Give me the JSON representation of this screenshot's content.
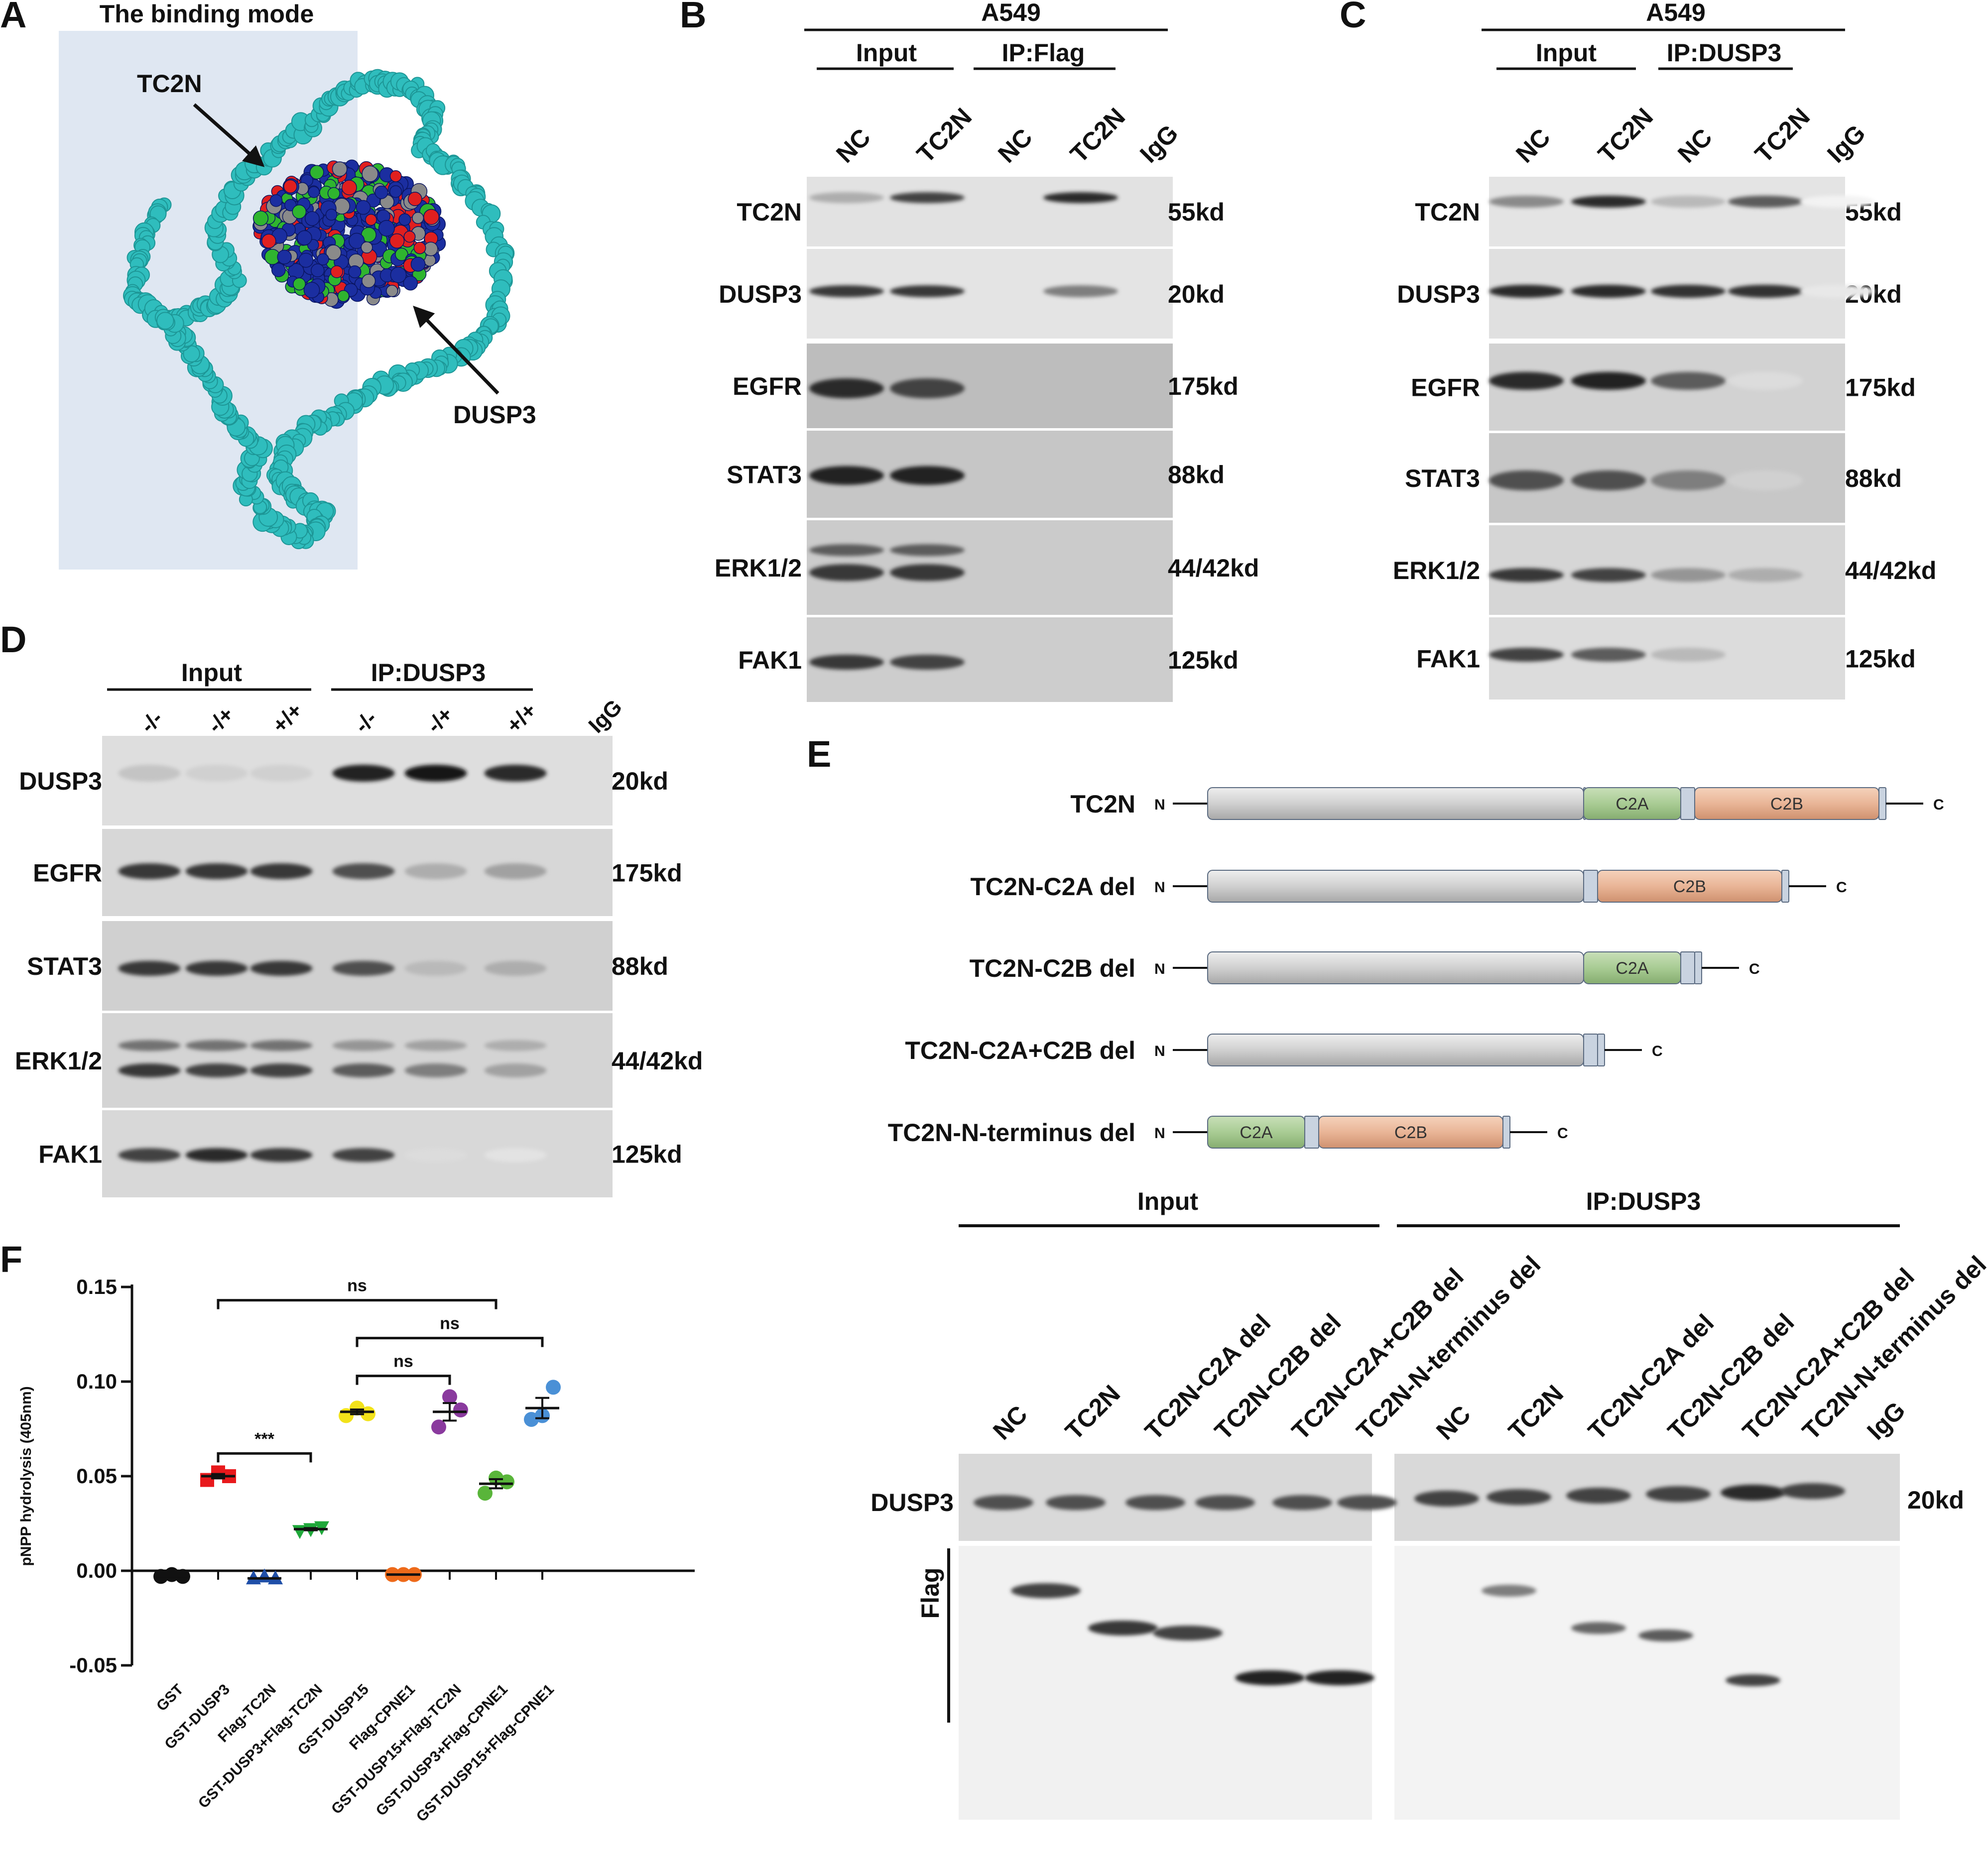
{
  "panelA": {
    "letter": "A",
    "title": "The binding mode",
    "label_tc2n": "TC2N",
    "label_dusp3": "DUSP3"
  },
  "panelB": {
    "letter": "B",
    "cell_line": "A549",
    "group_input": "Input",
    "group_ip": "IP:Flag",
    "lanes": [
      "NC",
      "TC2N",
      "NC",
      "TC2N",
      "IgG"
    ],
    "proteins": [
      "TC2N",
      "DUSP3",
      "EGFR",
      "STAT3",
      "ERK1/2",
      "FAK1"
    ],
    "sizes": [
      "55kd",
      "20kd",
      "175kd",
      "88kd",
      "44/42kd",
      "125kd"
    ]
  },
  "panelC": {
    "letter": "C",
    "cell_line": "A549",
    "group_input": "Input",
    "group_ip": "IP:DUSP3",
    "lanes": [
      "NC",
      "TC2N",
      "NC",
      "TC2N",
      "IgG"
    ],
    "proteins": [
      "TC2N",
      "DUSP3",
      "EGFR",
      "STAT3",
      "ERK1/2",
      "FAK1"
    ],
    "sizes": [
      "55kd",
      "20kd",
      "175kd",
      "88kd",
      "44/42kd",
      "125kd"
    ]
  },
  "panelD": {
    "letter": "D",
    "group_input": "Input",
    "group_ip": "IP:DUSP3",
    "lanes": [
      "-/-",
      "-/+",
      "+/+",
      "-/-",
      "-/+",
      "+/+",
      "IgG"
    ],
    "proteins": [
      "DUSP3",
      "EGFR",
      "STAT3",
      "ERK1/2",
      "FAK1"
    ],
    "sizes": [
      "20kd",
      "175kd",
      "88kd",
      "44/42kd",
      "125kd"
    ]
  },
  "panelE": {
    "letter": "E",
    "constructs": [
      {
        "name": "TC2N",
        "domains": [
          "C2A",
          "C2B"
        ]
      },
      {
        "name": "TC2N-C2A del",
        "domains": [
          "C2B"
        ]
      },
      {
        "name": "TC2N-C2B del",
        "domains": [
          "C2A"
        ]
      },
      {
        "name": "TC2N-C2A+C2B del",
        "domains": []
      },
      {
        "name": "TC2N-N-terminus del",
        "domains": [
          "C2A",
          "C2B"
        ]
      }
    ],
    "n_term": "N",
    "c_term": "C",
    "group_input": "Input",
    "group_ip": "IP:DUSP3",
    "lanes_input": [
      "NC",
      "TC2N",
      "TC2N-C2A del",
      "TC2N-C2B del",
      "TC2N-C2A+C2B del",
      "TC2N-N-terminus del"
    ],
    "lanes_ip": [
      "NC",
      "TC2N",
      "TC2N-C2A del",
      "TC2N-C2B del",
      "TC2N-C2A+C2B del",
      "TC2N-N-terminus del",
      "IgG"
    ],
    "blot_dusp3": "DUSP3",
    "blot_flag": "Flag",
    "size_dusp3": "20kd"
  },
  "panelF": {
    "letter": "F",
    "chart_data": {
      "type": "scatter",
      "ylabel": "pNPP hydrolysis (405nm)",
      "ylim": [
        -0.05,
        0.15
      ],
      "yticks": [
        "0.15",
        "0.10",
        "0.05",
        "0.00",
        "-0.05"
      ],
      "yticks_values": [
        0.15,
        0.1,
        0.05,
        0.0,
        -0.05
      ],
      "categories": [
        "GST",
        "GST-DUSP3",
        "Flag-TC2N",
        "GST-DUSP3+Flag-TC2N",
        "GST-DUSP15",
        "Flag-CPNE1",
        "GST-DUSP15+Flag-TC2N",
        "GST-DUSP3+Flag-CPNE1",
        "GST-DUSP15+Flag-CPNE1"
      ],
      "series": [
        {
          "points": [
            -0.003,
            -0.002,
            -0.003
          ],
          "marker": "circle",
          "color": "#111111"
        },
        {
          "points": [
            0.048,
            0.052,
            0.05
          ],
          "marker": "square",
          "color": "#e8191c"
        },
        {
          "points": [
            -0.004,
            -0.003,
            -0.004
          ],
          "marker": "triangle-up",
          "color": "#1f4fa8"
        },
        {
          "points": [
            0.021,
            0.022,
            0.023
          ],
          "marker": "triangle-down",
          "color": "#1fa83a"
        },
        {
          "points": [
            0.082,
            0.086,
            0.083
          ],
          "marker": "circle",
          "color": "#f2e21a"
        },
        {
          "points": [
            -0.002,
            -0.002,
            -0.002
          ],
          "marker": "circle",
          "color": "#ee6a1a"
        },
        {
          "points": [
            0.076,
            0.092,
            0.085
          ],
          "marker": "circle",
          "color": "#8a3a9e"
        },
        {
          "points": [
            0.041,
            0.049,
            0.047
          ],
          "marker": "circle",
          "color": "#59b53a"
        },
        {
          "points": [
            0.08,
            0.082,
            0.097
          ],
          "marker": "circle",
          "color": "#4a90d6"
        }
      ],
      "means": [
        -0.003,
        0.05,
        -0.004,
        0.022,
        0.084,
        -0.002,
        0.084,
        0.046,
        0.086
      ],
      "significance": [
        {
          "from": 1,
          "to": 3,
          "label": "***"
        },
        {
          "from": 4,
          "to": 6,
          "label": "ns"
        },
        {
          "from": 1,
          "to": 7,
          "label": "ns"
        },
        {
          "from": 4,
          "to": 8,
          "label": "ns"
        }
      ]
    }
  }
}
